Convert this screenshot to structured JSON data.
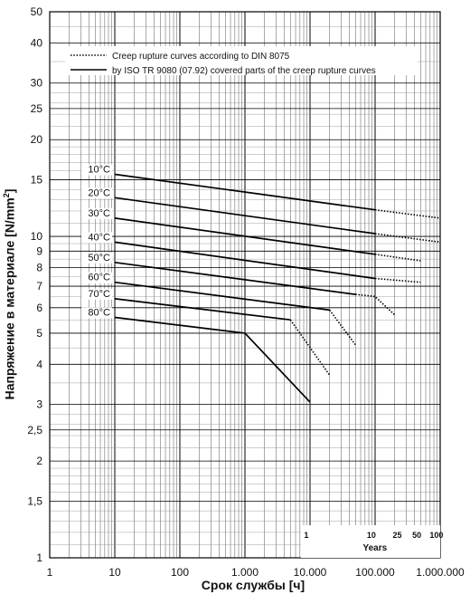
{
  "chart_data": {
    "type": "line",
    "xscale": "log",
    "yscale": "log",
    "xlim": [
      1,
      1000000
    ],
    "ylim": [
      1,
      50
    ],
    "xlabel": "Срок службы [ч]",
    "ylabel": "Напряжение в материале [N/mm",
    "ylabel_sup": "2",
    "ylabel_close": "]",
    "grid": true,
    "x_ticks": [
      {
        "value": 1,
        "label": "1"
      },
      {
        "value": 10,
        "label": "10"
      },
      {
        "value": 100,
        "label": "100"
      },
      {
        "value": 1000,
        "label": "1.000"
      },
      {
        "value": 10000,
        "label": "10.000"
      },
      {
        "value": 100000,
        "label": "100.000"
      },
      {
        "value": 1000000,
        "label": "1.000.000"
      }
    ],
    "y_ticks": [
      {
        "value": 1,
        "label": "1"
      },
      {
        "value": 1.5,
        "label": "1,5"
      },
      {
        "value": 2,
        "label": "2"
      },
      {
        "value": 2.5,
        "label": "2,5"
      },
      {
        "value": 3,
        "label": "3"
      },
      {
        "value": 4,
        "label": "4"
      },
      {
        "value": 5,
        "label": "5"
      },
      {
        "value": 6,
        "label": "6"
      },
      {
        "value": 7,
        "label": "7"
      },
      {
        "value": 8,
        "label": "8"
      },
      {
        "value": 9,
        "label": "9"
      },
      {
        "value": 10,
        "label": "10"
      },
      {
        "value": 15,
        "label": "15"
      },
      {
        "value": 20,
        "label": "20"
      },
      {
        "value": 25,
        "label": "25"
      },
      {
        "value": 30,
        "label": "30"
      },
      {
        "value": 40,
        "label": "40"
      },
      {
        "value": 50,
        "label": "50"
      }
    ],
    "years_axis": {
      "label": "Years",
      "ticks": [
        {
          "years": 1,
          "label": "1"
        },
        {
          "years": 10,
          "label": "10"
        },
        {
          "years": 25,
          "label": "25"
        },
        {
          "years": 50,
          "label": "50"
        },
        {
          "years": 100,
          "label": "100"
        }
      ]
    },
    "legend": {
      "placement": "top",
      "entries": [
        {
          "style": "dotted",
          "label": "Creep rupture curves according to DIN 8075"
        },
        {
          "style": "solid",
          "label": "by ISO TR 9080 (07.92) covered parts of the creep rupture curves"
        }
      ]
    },
    "series": [
      {
        "name": "10°C",
        "solid": [
          [
            10,
            15.6
          ],
          [
            100000,
            12.1
          ]
        ],
        "dotted": [
          [
            100000,
            12.1
          ],
          [
            1000000,
            11.4
          ]
        ]
      },
      {
        "name": "20°C",
        "solid": [
          [
            10,
            13.2
          ],
          [
            100000,
            10.2
          ]
        ],
        "dotted": [
          [
            100000,
            10.2
          ],
          [
            1000000,
            9.6
          ]
        ]
      },
      {
        "name": "30°C",
        "solid": [
          [
            10,
            11.4
          ],
          [
            100000,
            8.8
          ]
        ],
        "dotted": [
          [
            100000,
            8.8
          ],
          [
            500000,
            8.4
          ]
        ]
      },
      {
        "name": "40°C",
        "solid": [
          [
            10,
            9.6
          ],
          [
            100000,
            7.4
          ]
        ],
        "dotted": [
          [
            100000,
            7.4
          ],
          [
            500000,
            7.2
          ]
        ]
      },
      {
        "name": "50°C",
        "solid": [
          [
            10,
            8.3
          ],
          [
            50000,
            6.6
          ]
        ],
        "dotted": [
          [
            50000,
            6.6
          ],
          [
            100000,
            6.5
          ],
          [
            200000,
            5.7
          ]
        ]
      },
      {
        "name": "60°C",
        "solid": [
          [
            10,
            7.2
          ],
          [
            20000,
            5.9
          ]
        ],
        "dotted": [
          [
            20000,
            5.9
          ],
          [
            50000,
            4.6
          ]
        ]
      },
      {
        "name": "70°C",
        "solid": [
          [
            10,
            6.4
          ],
          [
            5000,
            5.5
          ]
        ],
        "dotted": [
          [
            5000,
            5.5
          ],
          [
            20000,
            3.7
          ]
        ]
      },
      {
        "name": "80°C",
        "solid": [
          [
            10,
            5.6
          ],
          [
            1000,
            5.0
          ],
          [
            10000,
            3.05
          ]
        ],
        "dotted": []
      }
    ]
  }
}
